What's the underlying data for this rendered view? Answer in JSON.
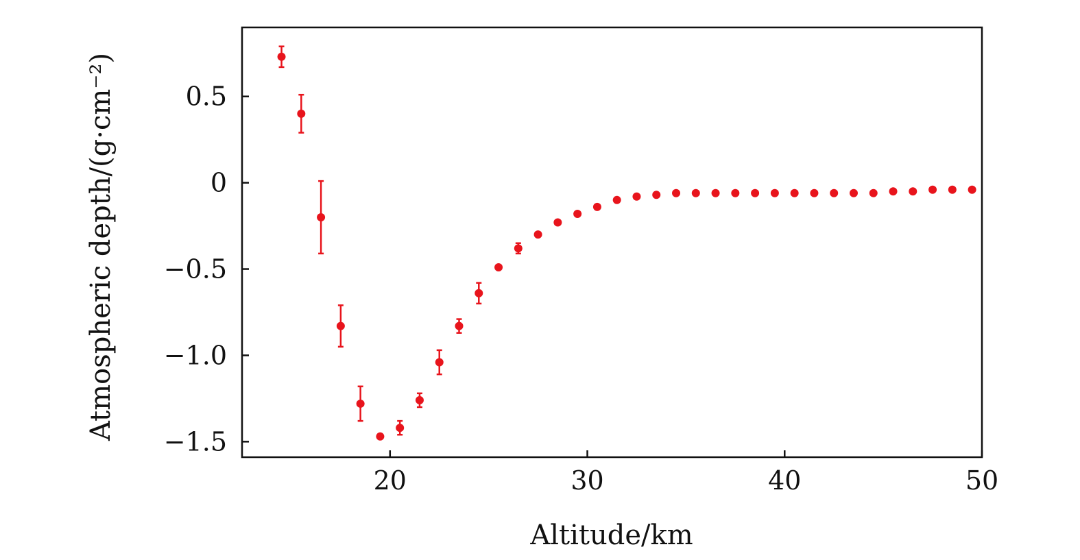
{
  "chart_data": {
    "type": "scatter",
    "title": "",
    "xlabel": "Altitude/km",
    "ylabel": "Atmospheric depth/(g·cm⁻²)",
    "xlim": [
      12.5,
      50
    ],
    "ylim": [
      -1.59,
      0.9
    ],
    "xticks": [
      20,
      30,
      40,
      50
    ],
    "xtick_labels": [
      "20",
      "30",
      "40",
      "50"
    ],
    "yticks": [
      0.5,
      0,
      -0.5,
      -1.0,
      -1.5
    ],
    "ytick_labels": [
      "0.5",
      "0",
      "−0.5",
      "−1.0",
      "−1.5"
    ],
    "grid": false,
    "color": "#e8141c",
    "series": [
      {
        "name": "Atmospheric depth",
        "x": [
          14.5,
          15.5,
          16.5,
          17.5,
          18.5,
          19.5,
          20.5,
          21.5,
          22.5,
          23.5,
          24.5,
          25.5,
          26.5,
          27.5,
          28.5,
          29.5,
          30.5,
          31.5,
          32.5,
          33.5,
          34.5,
          35.5,
          36.5,
          37.5,
          38.5,
          39.5,
          40.5,
          41.5,
          42.5,
          43.5,
          44.5,
          45.5,
          46.5,
          47.5,
          48.5,
          49.5
        ],
        "y": [
          0.73,
          0.4,
          -0.2,
          -0.83,
          -1.28,
          -1.47,
          -1.42,
          -1.26,
          -1.04,
          -0.83,
          -0.64,
          -0.49,
          -0.38,
          -0.3,
          -0.23,
          -0.18,
          -0.14,
          -0.1,
          -0.08,
          -0.07,
          -0.06,
          -0.06,
          -0.06,
          -0.06,
          -0.06,
          -0.06,
          -0.06,
          -0.06,
          -0.06,
          -0.06,
          -0.06,
          -0.05,
          -0.05,
          -0.04,
          -0.04,
          -0.04
        ],
        "yerr": [
          0.06,
          0.11,
          0.21,
          0.12,
          0.1,
          0.01,
          0.04,
          0.04,
          0.07,
          0.04,
          0.06,
          0.02,
          0.03,
          0.01,
          0.02,
          0.01,
          0.01,
          0.01,
          0.01,
          0.01,
          0.01,
          0.01,
          0.01,
          0.01,
          0.01,
          0.01,
          0.01,
          0.01,
          0.01,
          0.01,
          0.01,
          0.01,
          0.01,
          0.01,
          0.01,
          0.01
        ]
      }
    ]
  }
}
